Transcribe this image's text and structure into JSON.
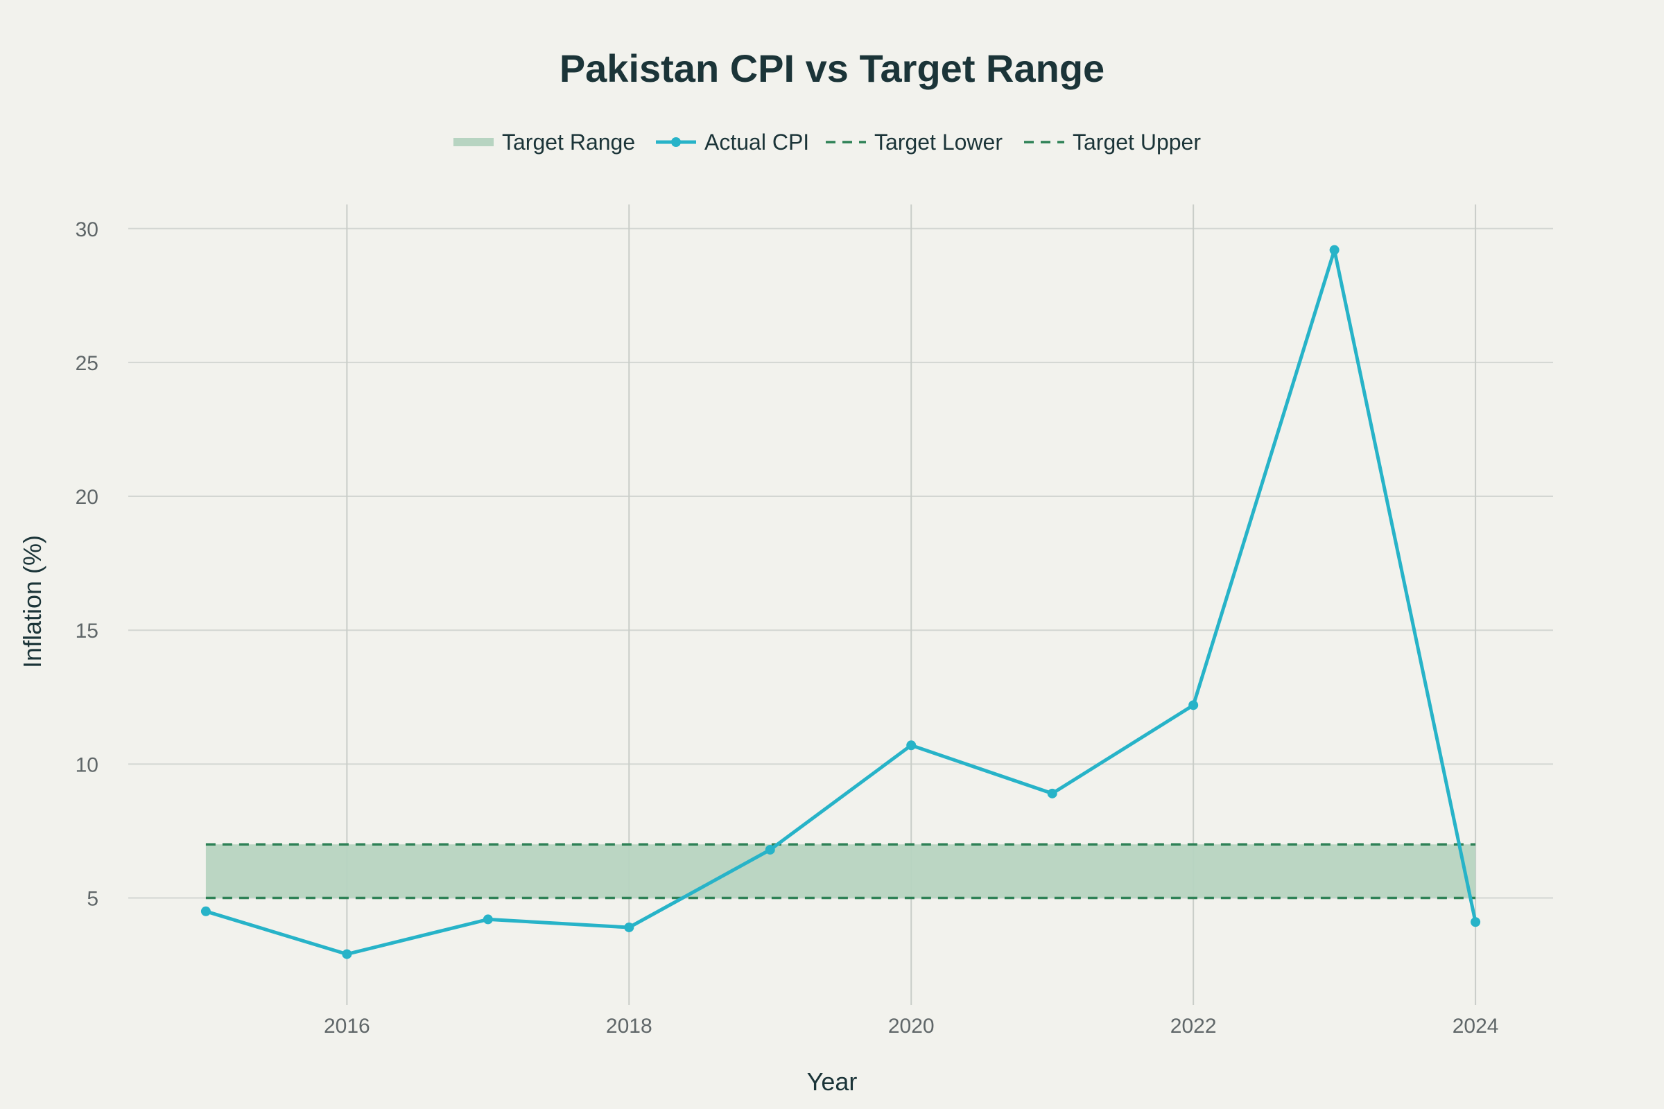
{
  "chart_data": {
    "type": "line",
    "title": "Pakistan CPI vs Target Range",
    "xlabel": "Year",
    "ylabel": "Inflation (%)",
    "x": [
      2015,
      2016,
      2017,
      2018,
      2019,
      2020,
      2021,
      2022,
      2023,
      2024
    ],
    "xlim": [
      2014.45,
      2024.55
    ],
    "ylim": [
      1.0,
      30.9
    ],
    "x_ticks": [
      2016,
      2018,
      2020,
      2022,
      2024
    ],
    "y_ticks": [
      5,
      10,
      15,
      20,
      25,
      30
    ],
    "grid": true,
    "legend_position": "top-center",
    "series": [
      {
        "name": "Actual CPI",
        "values": [
          4.5,
          2.9,
          4.2,
          3.9,
          6.8,
          10.7,
          8.9,
          12.2,
          29.2,
          4.1
        ],
        "color": "#27b3c8"
      },
      {
        "name": "Target Lower",
        "values": [
          5,
          5,
          5,
          5,
          5,
          5,
          5,
          5,
          5,
          5
        ],
        "color": "#2e8156"
      },
      {
        "name": "Target Upper",
        "values": [
          7,
          7,
          7,
          7,
          7,
          7,
          7,
          7,
          7,
          7
        ],
        "color": "#2e8156"
      }
    ],
    "band": {
      "name": "Target Range",
      "lower": 5,
      "upper": 7,
      "color": "#b7d4c1"
    },
    "legend_order": [
      "Target Range",
      "Actual CPI",
      "Target Lower",
      "Target Upper"
    ]
  },
  "colors": {
    "background": "#f2f2ed",
    "title": "#1b3438",
    "tick": "#5f6668"
  }
}
